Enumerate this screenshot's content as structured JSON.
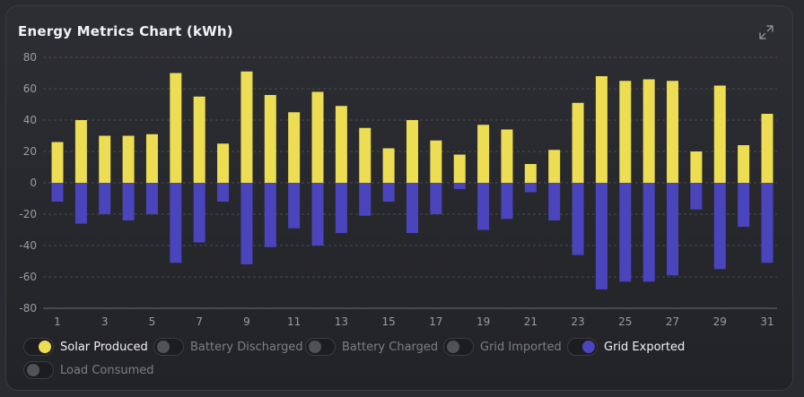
{
  "title": "Energy Metrics Chart (kWh)",
  "icons": {
    "expand": "expand-icon"
  },
  "colors": {
    "solar": "#ecdd52",
    "exported": "#4a45bd",
    "grid": "#4a4b51",
    "axis_text": "#9a9ca3",
    "zero_line": "#6a6b70"
  },
  "legend": [
    {
      "label": "Solar Produced",
      "active": true,
      "color": "#ecdd52"
    },
    {
      "label": "Battery Discharged",
      "active": false,
      "color": "#505257"
    },
    {
      "label": "Battery Charged",
      "active": false,
      "color": "#505257"
    },
    {
      "label": "Grid Imported",
      "active": false,
      "color": "#505257"
    },
    {
      "label": "Grid Exported",
      "active": true,
      "color": "#4a45bd"
    },
    {
      "label": "Load Consumed",
      "active": false,
      "color": "#505257"
    }
  ],
  "chart_data": {
    "type": "bar",
    "stacked": true,
    "title": "Energy Metrics Chart (kWh)",
    "x": [
      1,
      2,
      3,
      4,
      5,
      6,
      7,
      8,
      9,
      10,
      11,
      12,
      13,
      14,
      15,
      16,
      17,
      18,
      19,
      20,
      21,
      22,
      23,
      24,
      25,
      26,
      27,
      28,
      29,
      30,
      31
    ],
    "x_tick_labels": [
      "1",
      "3",
      "5",
      "7",
      "9",
      "11",
      "13",
      "15",
      "17",
      "19",
      "21",
      "23",
      "25",
      "27",
      "29",
      "31"
    ],
    "y_ticks": [
      80,
      60,
      40,
      20,
      0,
      -20,
      -40,
      -60,
      -80
    ],
    "ylim": [
      -80,
      80
    ],
    "grid": true,
    "legend_position": "bottom",
    "series": [
      {
        "name": "Solar Produced",
        "color": "#ecdd52",
        "values": [
          26,
          40,
          30,
          30,
          31,
          70,
          55,
          25,
          71,
          56,
          45,
          58,
          49,
          35,
          22,
          40,
          27,
          18,
          37,
          34,
          12,
          21,
          51,
          68,
          65,
          66,
          65,
          20,
          62,
          24,
          44
        ]
      },
      {
        "name": "Grid Exported",
        "color": "#4a45bd",
        "values": [
          -12,
          -26,
          -20,
          -24,
          -20,
          -51,
          -38,
          -12,
          -52,
          -41,
          -29,
          -40,
          -32,
          -21,
          -12,
          -32,
          -20,
          -4,
          -30,
          -23,
          -6,
          -24,
          -46,
          -68,
          -63,
          -63,
          -59,
          -17,
          -55,
          -28,
          -51
        ]
      }
    ]
  }
}
